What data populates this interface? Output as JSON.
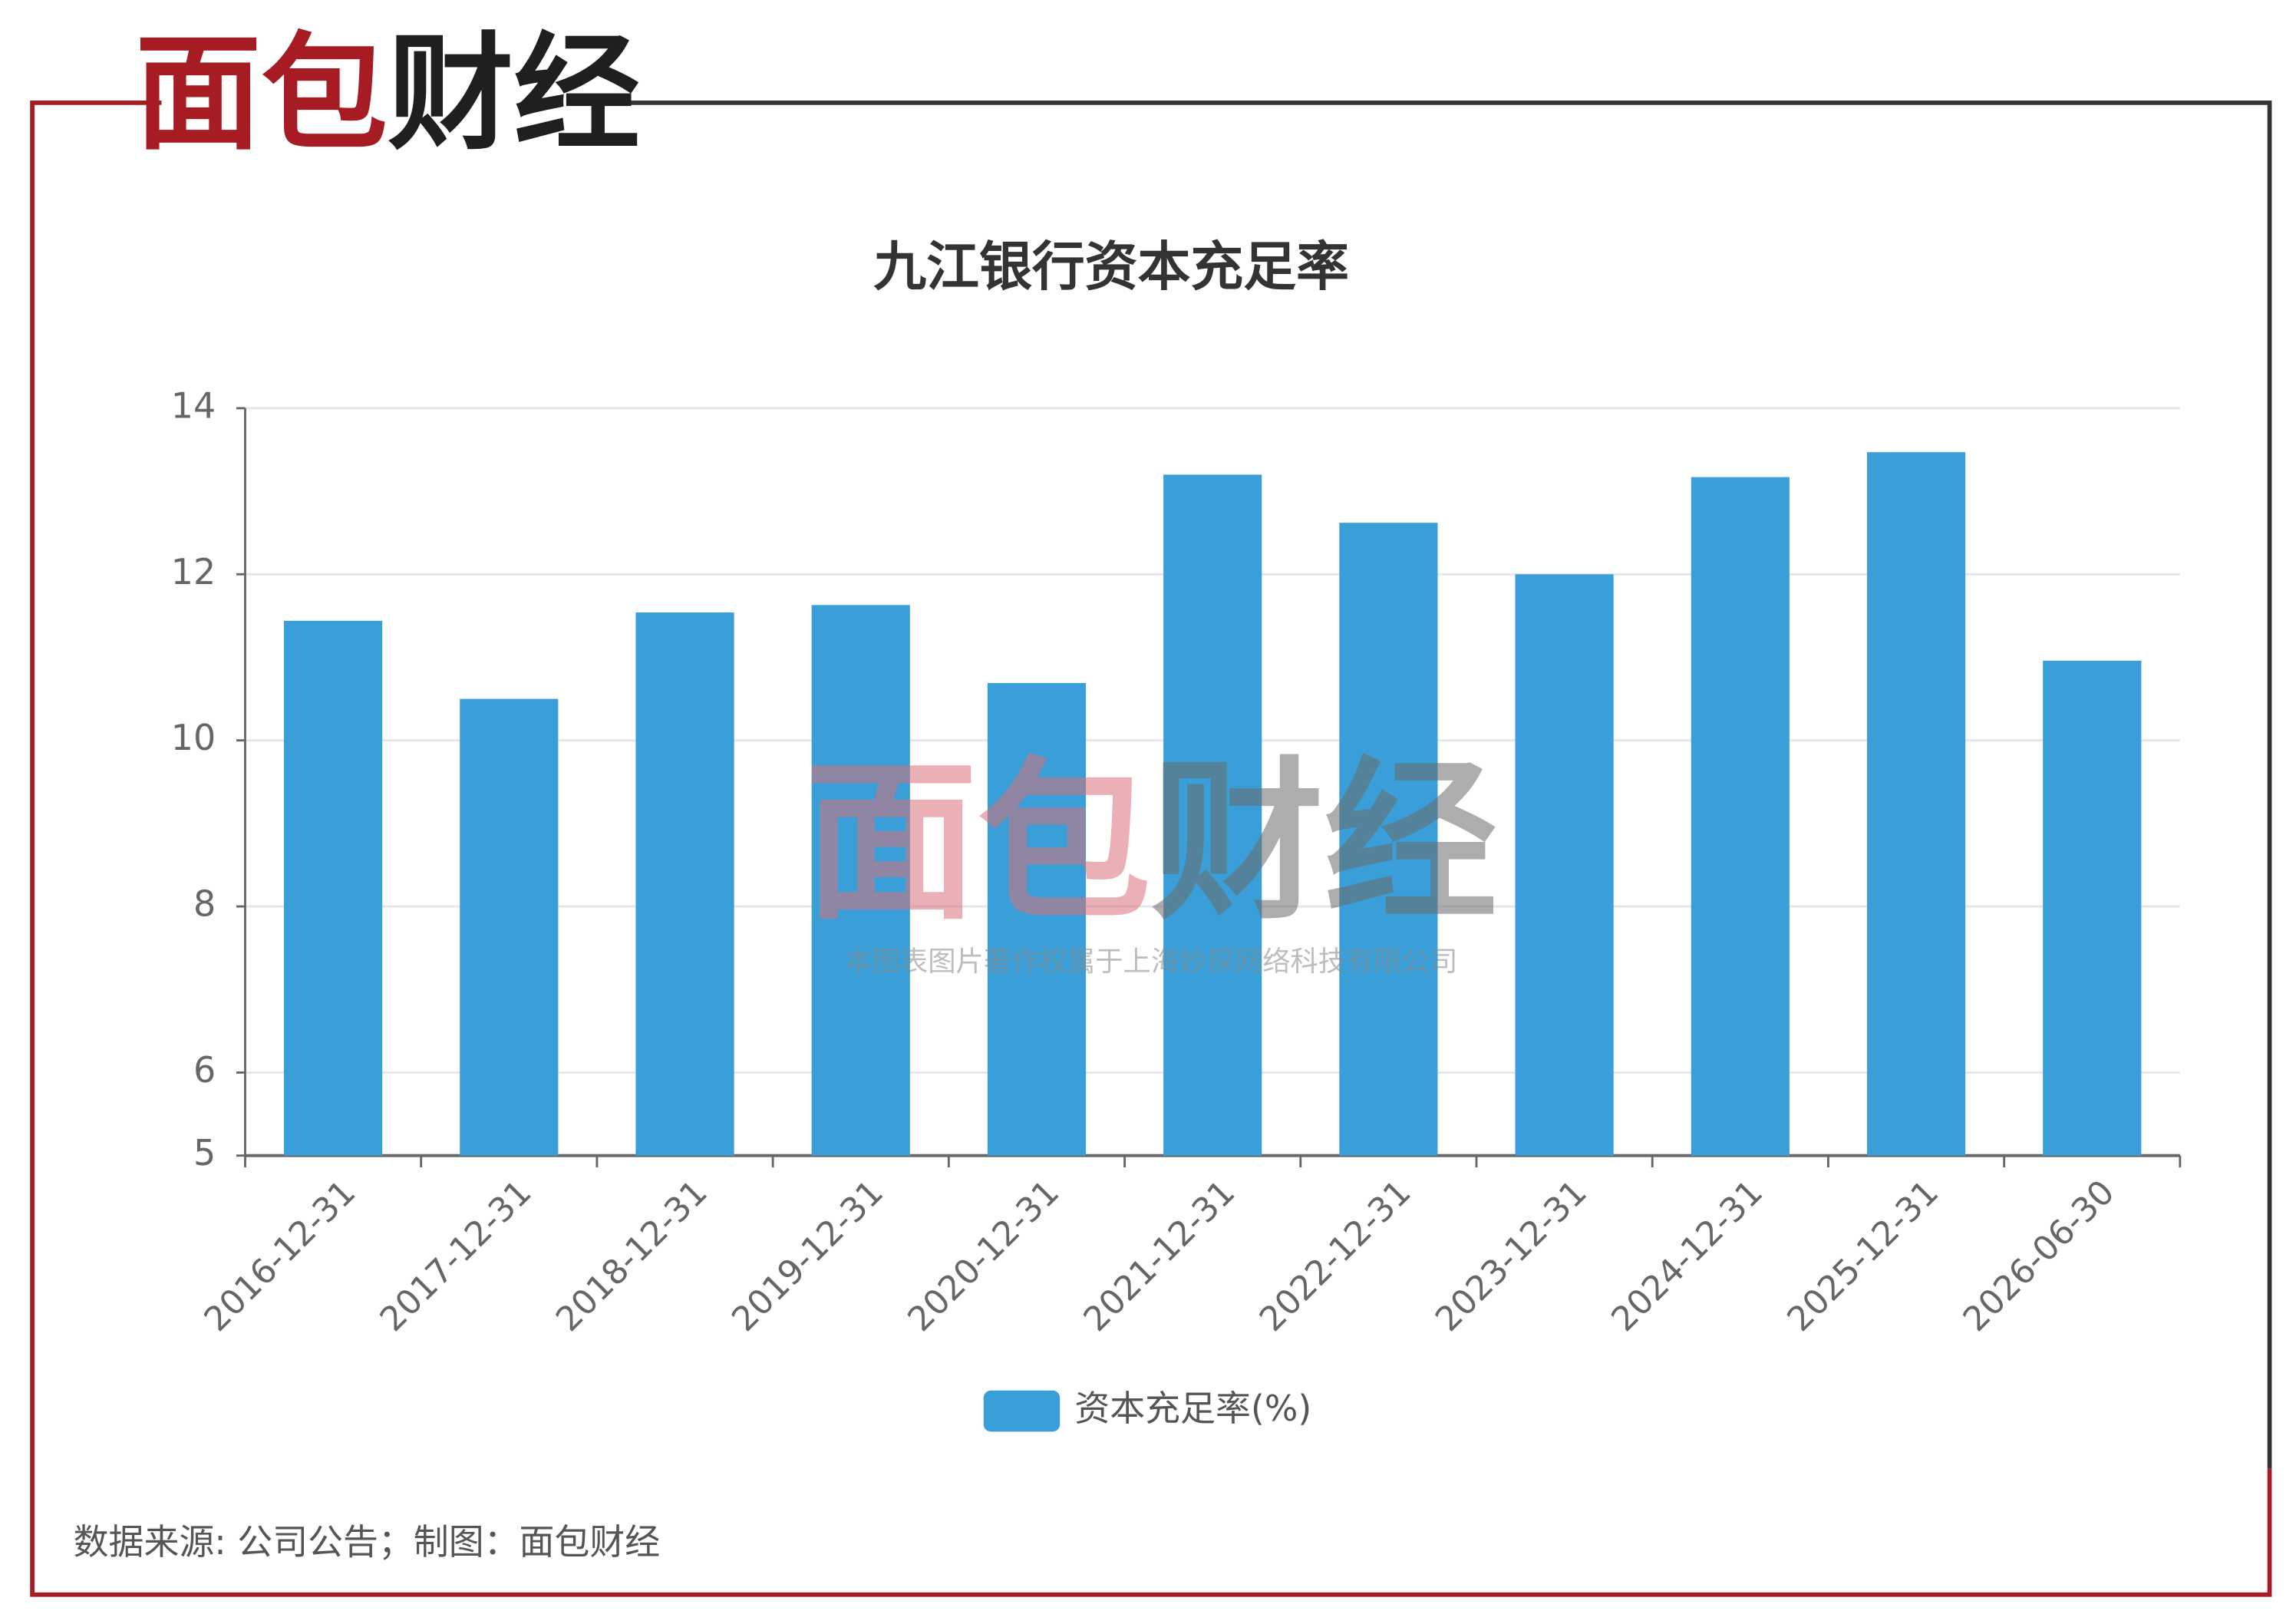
{
  "logo": "面包财经",
  "watermark": {
    "logo": "面包财经",
    "text": "本图表图片著作权属于上海妙探网络科技有限公司"
  },
  "source": "数据来源: 公司公告；制图：面包财经",
  "chart_data": {
    "type": "bar",
    "title": "九江银行资本充足率",
    "categories": [
      "2016-12-31",
      "2017-12-31",
      "2018-12-31",
      "2019-12-31",
      "2020-12-31",
      "2021-12-31",
      "2022-12-31",
      "2023-12-31",
      "2024-12-31",
      "2025-12-31",
      "2026-06-30"
    ],
    "series": [
      {
        "name": "资本充足率(%)",
        "color": "#3a9fd8",
        "values": [
          11.44,
          10.5,
          11.54,
          11.63,
          10.69,
          13.2,
          12.62,
          12.0,
          13.17,
          13.47,
          10.96
        ]
      }
    ],
    "ylim": [
      5,
      14
    ],
    "yticks": [
      5,
      6,
      8,
      10,
      12,
      14
    ],
    "grid": true,
    "legend": "bottom"
  }
}
